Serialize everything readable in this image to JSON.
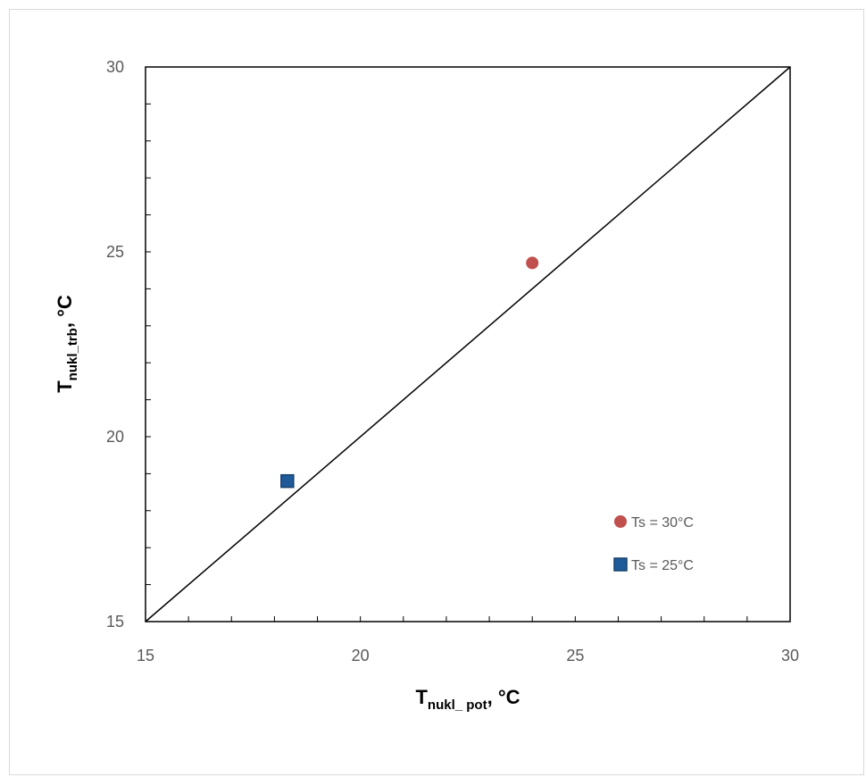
{
  "chart_data": {
    "type": "scatter",
    "xlim": [
      15,
      30
    ],
    "ylim": [
      15,
      30
    ],
    "x_ticks": [
      "15",
      "20",
      "25",
      "30"
    ],
    "y_ticks": [
      "15",
      "20",
      "25",
      "30"
    ],
    "xlabel": {
      "main": "T",
      "sub": "nukl_ pot",
      "suffix": ", °C"
    },
    "ylabel": {
      "main": "T",
      "sub": "nukl_trb",
      "suffix": ", °C"
    },
    "reference_line": {
      "from": [
        15,
        15
      ],
      "to": [
        30,
        30
      ],
      "color": "#000000"
    },
    "series": [
      {
        "name": "Ts = 30°C",
        "marker": "circle",
        "color": "#c0504d",
        "points": [
          [
            24.0,
            24.7
          ]
        ]
      },
      {
        "name": "Ts = 25°C",
        "marker": "square",
        "color": "#1f5b99",
        "points": [
          [
            18.3,
            18.8
          ]
        ]
      }
    ],
    "legend_position": "bottom-right",
    "grid": false
  }
}
